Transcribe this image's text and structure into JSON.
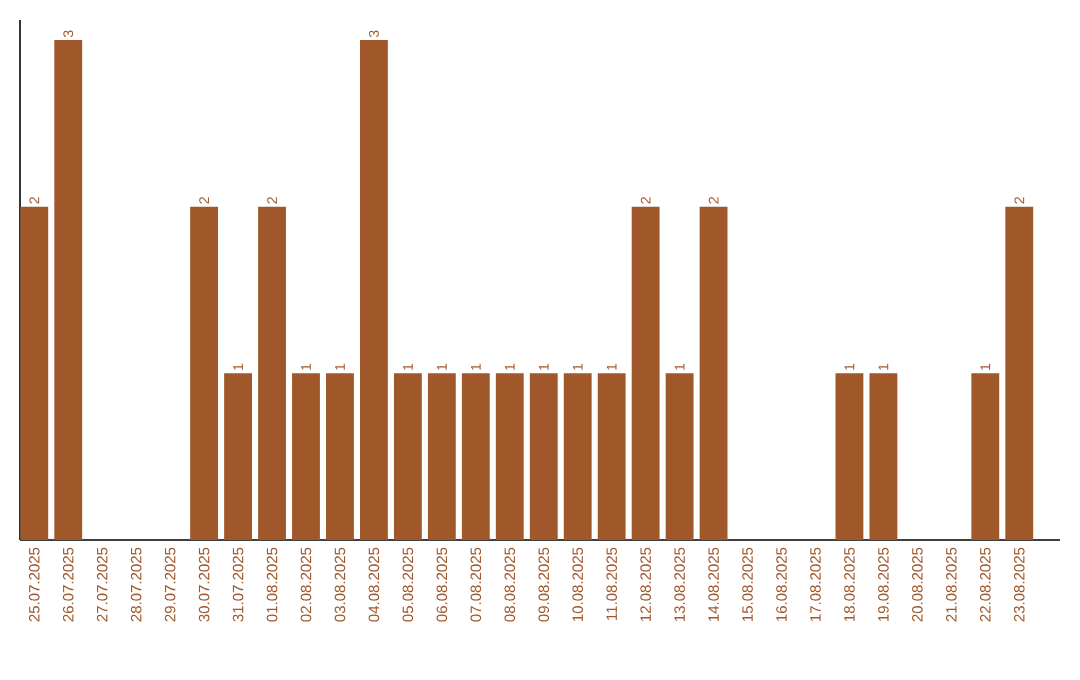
{
  "chart_data": {
    "type": "bar",
    "categories": [
      "25.07.2025",
      "26.07.2025",
      "27.07.2025",
      "28.07.2025",
      "29.07.2025",
      "30.07.2025",
      "31.07.2025",
      "01.08.2025",
      "02.08.2025",
      "03.08.2025",
      "04.08.2025",
      "05.08.2025",
      "06.08.2025",
      "07.08.2025",
      "08.08.2025",
      "09.08.2025",
      "10.08.2025",
      "11.08.2025",
      "12.08.2025",
      "13.08.2025",
      "14.08.2025",
      "15.08.2025",
      "16.08.2025",
      "17.08.2025",
      "18.08.2025",
      "19.08.2025",
      "20.08.2025",
      "21.08.2025",
      "22.08.2025",
      "23.08.2025"
    ],
    "values": [
      2,
      3,
      0,
      0,
      0,
      2,
      1,
      2,
      1,
      1,
      3,
      1,
      1,
      1,
      1,
      1,
      1,
      1,
      2,
      1,
      2,
      0,
      0,
      0,
      1,
      1,
      0,
      0,
      1,
      2
    ],
    "value_labels": [
      "2",
      "3",
      null,
      null,
      null,
      "2",
      "1",
      "2",
      "1",
      "1",
      "3",
      "1",
      "1",
      "1",
      "1",
      "1",
      "1",
      "1",
      "2",
      "1",
      "2",
      null,
      null,
      null,
      "1",
      "1",
      null,
      null,
      "1",
      "2"
    ],
    "color": "#a0572a",
    "tick_labels": "x"
  }
}
